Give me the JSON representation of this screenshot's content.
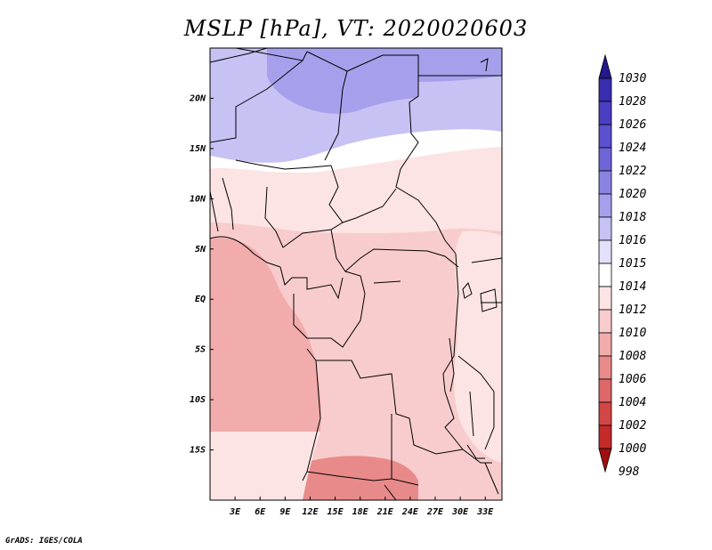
{
  "title": "MSLP [hPa], VT: 2020020603",
  "footer": "GrADS: IGES/COLA",
  "lat_labels": [
    "20N",
    "15N",
    "10N",
    "5N",
    "EQ",
    "5S",
    "10S",
    "15S"
  ],
  "lat_values": [
    20,
    15,
    10,
    5,
    0,
    -5,
    -10,
    -15
  ],
  "lon_labels": [
    "3E",
    "6E",
    "9E",
    "12E",
    "15E",
    "18E",
    "21E",
    "24E",
    "27E",
    "30E",
    "33E"
  ],
  "lon_values": [
    3,
    6,
    9,
    12,
    15,
    18,
    21,
    24,
    27,
    30,
    33
  ],
  "map_extent": {
    "lon_min": 0,
    "lon_max": 35,
    "lat_min": -20,
    "lat_max": 25
  },
  "colorbar": {
    "labels": [
      "1030",
      "1028",
      "1026",
      "1024",
      "1022",
      "1020",
      "1018",
      "1016",
      "1015",
      "1014",
      "1012",
      "1010",
      "1008",
      "1006",
      "1004",
      "1002",
      "1000",
      "998"
    ],
    "colors": [
      "#2a1f9e",
      "#3a2eb0",
      "#4a3ec2",
      "#5b50cf",
      "#6f65d9",
      "#8a82e3",
      "#a6a0ec",
      "#c6c2f4",
      "#e2e0fa",
      "#ffffff",
      "#fce4e4",
      "#f8cccc",
      "#f2acac",
      "#e88a8a",
      "#de6868",
      "#d24646",
      "#c42a2a",
      "#b01818"
    ],
    "top_arrow_color": "#24188c",
    "bottom_arrow_color": "#a01010"
  },
  "pressure_fills": {
    "high_north": "#c6c2f4",
    "higher_core": "#a6a0ec",
    "neutral_band": "#ffffff",
    "light_pink": "#fce4e4",
    "pink": "#f8cccc",
    "deep_pink": "#f2acac",
    "low_south": "#e88a8a"
  }
}
